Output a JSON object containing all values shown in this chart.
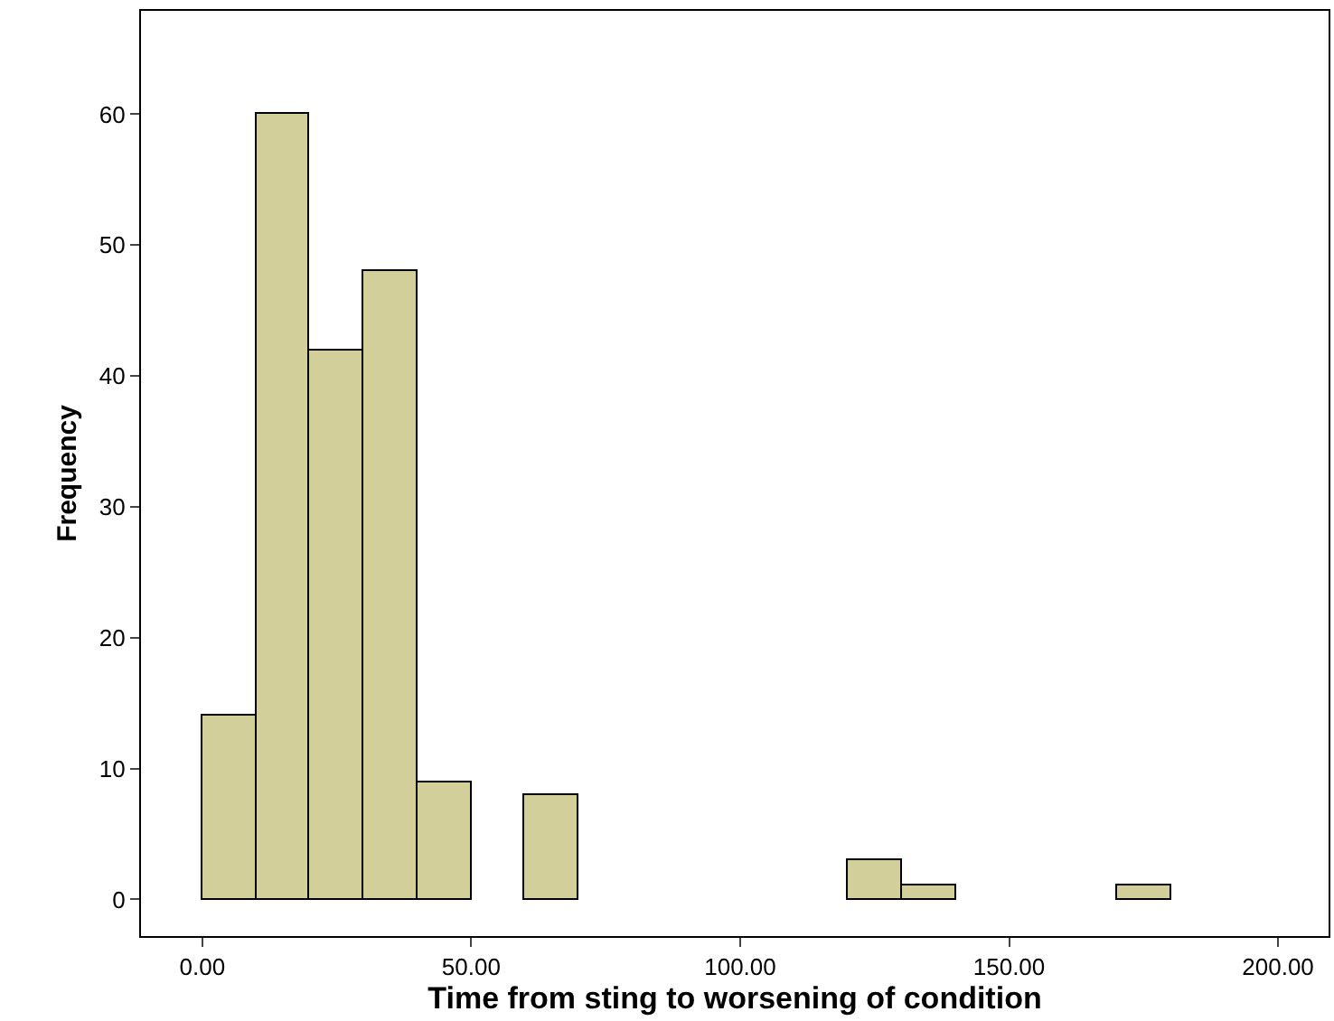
{
  "chart_data": {
    "type": "histogram",
    "xlabel": "Time from sting to worsening of condition",
    "ylabel": "Frequency",
    "bins": [
      0,
      10,
      20,
      30,
      40,
      50,
      60,
      70,
      80,
      90,
      100,
      110,
      120,
      130,
      140,
      150,
      160,
      170,
      180
    ],
    "values": [
      14,
      60,
      42,
      48,
      9,
      0,
      8,
      0,
      0,
      0,
      0,
      0,
      3,
      1,
      0,
      0,
      0,
      1
    ],
    "color": "#d3cf9a",
    "xlim": [
      -11.4,
      209.4
    ],
    "xticks": [
      {
        "value": 0,
        "label": "0.00"
      },
      {
        "value": 50,
        "label": "50.00"
      },
      {
        "value": 100,
        "label": "100.00"
      },
      {
        "value": 150,
        "label": "150.00"
      },
      {
        "value": 200,
        "label": "200.00"
      }
    ],
    "ylim": [
      -2.8,
      67.9
    ],
    "yticks": [
      0,
      10,
      20,
      30,
      40,
      50,
      60
    ]
  }
}
